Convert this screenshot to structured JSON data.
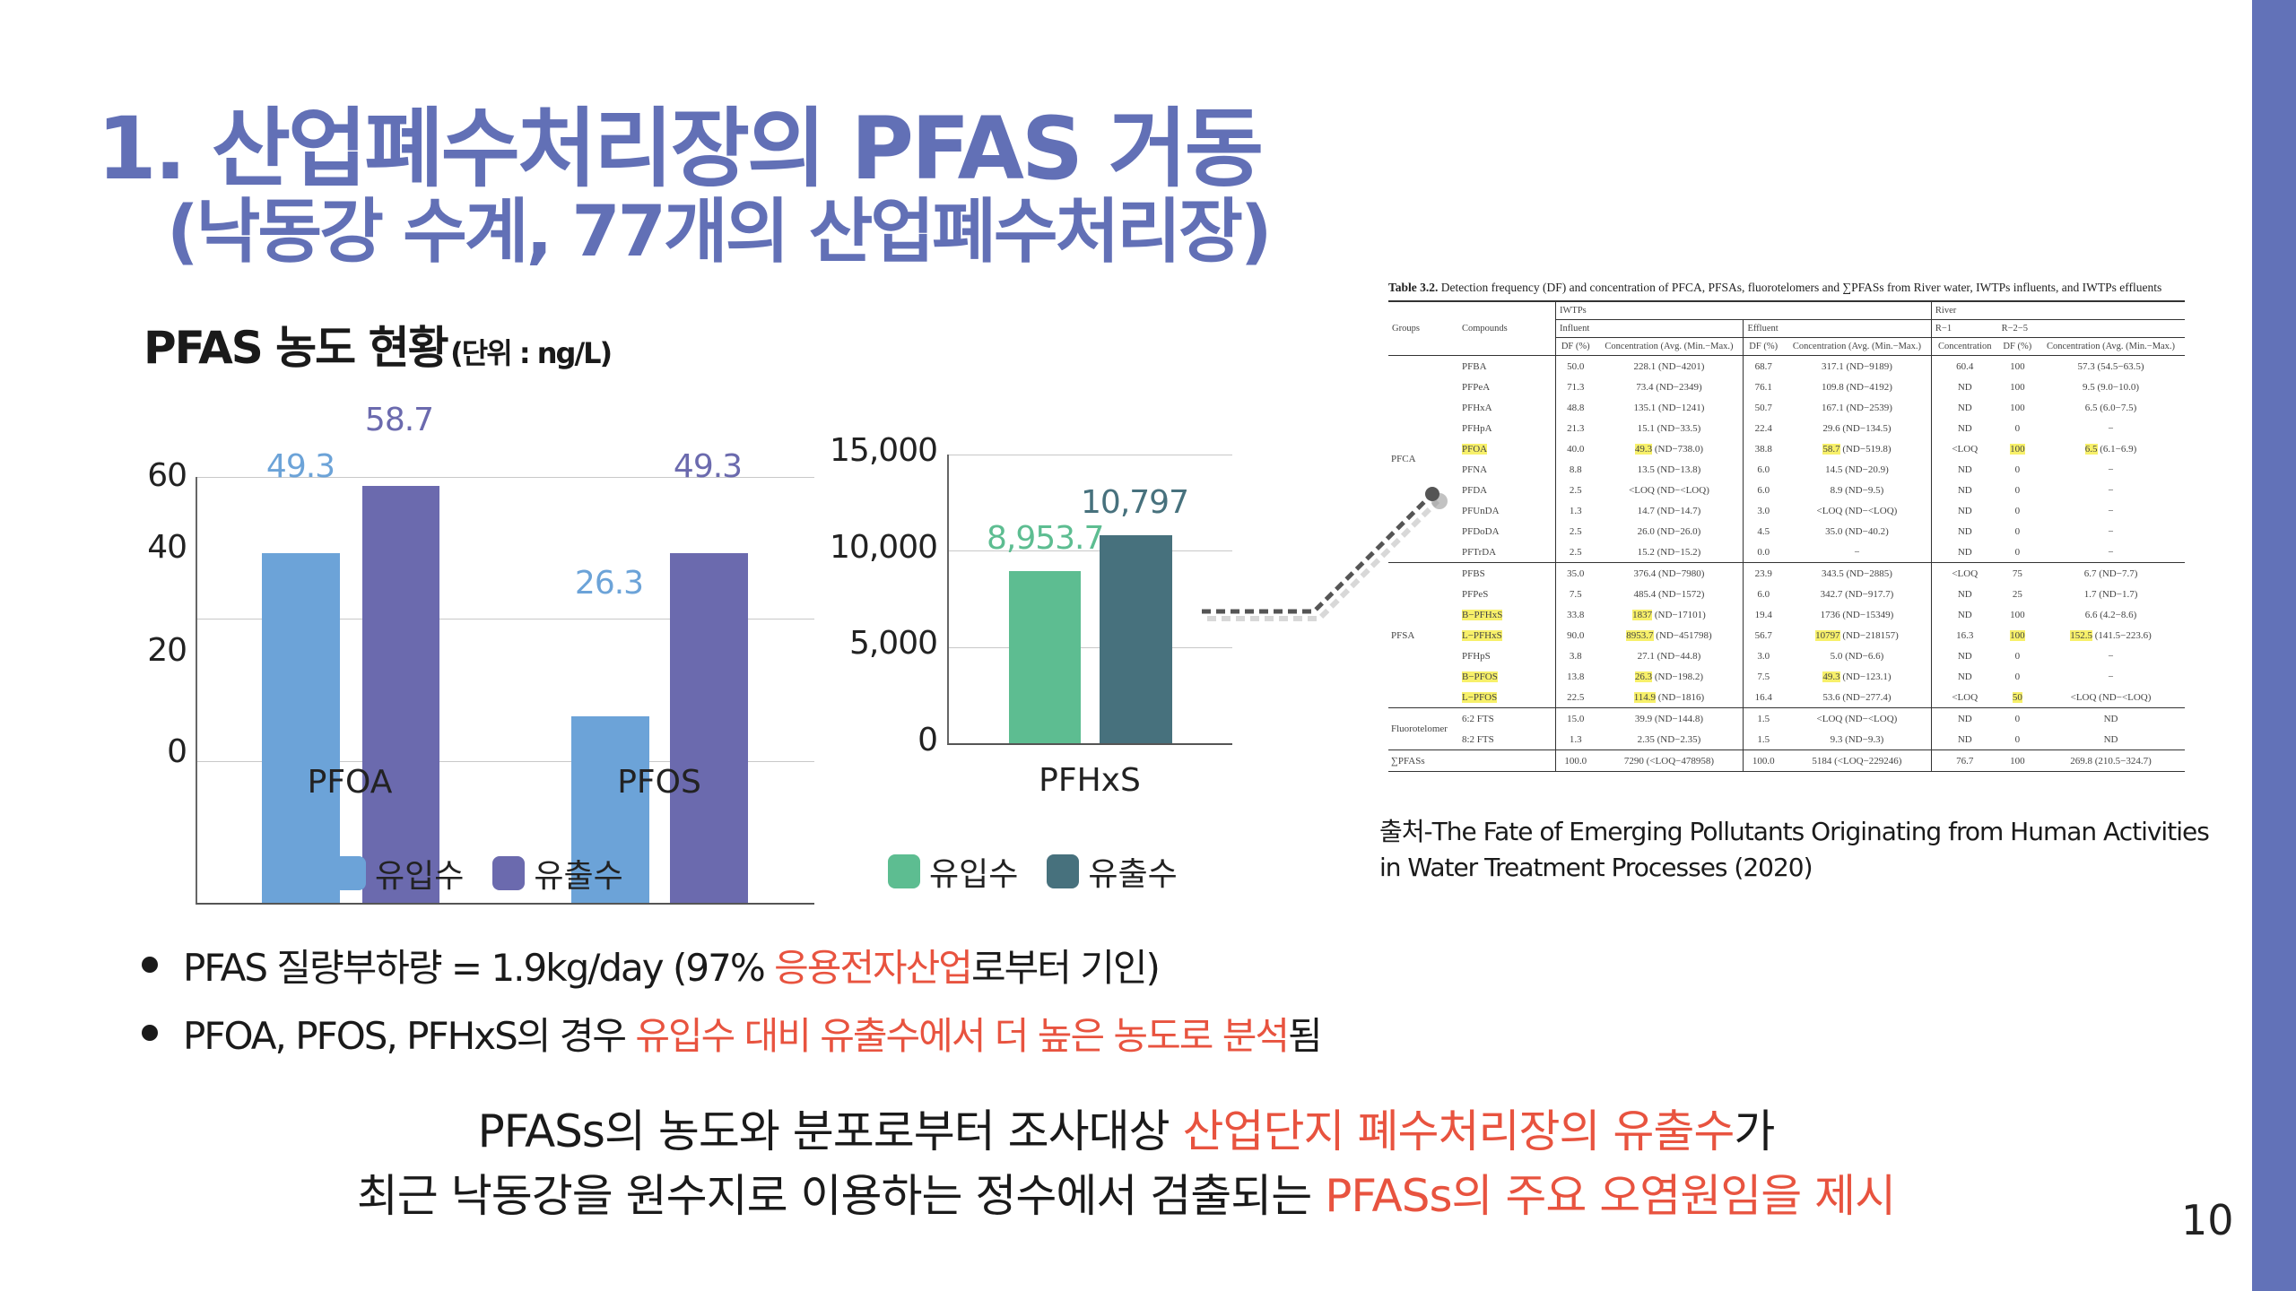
{
  "slide": {
    "title_line1": "1. 산업폐수처리장의 PFAS 거동",
    "title_line2": "(낙동강 수계, 77개의 산업폐수처리장)",
    "subtitle": "PFAS 농도 현황",
    "subtitle_unit": "(단위 : ng/L)",
    "page_number": "10",
    "accent_color": "#6272B8",
    "highlight_color": "#E8533F"
  },
  "legend_left": {
    "influent": "유입수",
    "effluent": "유출수"
  },
  "legend_right": {
    "influent": "유입수",
    "effluent": "유출수"
  },
  "chart_data": [
    {
      "type": "bar",
      "title": "PFAS 농도 현황 (단위 : ng/L)",
      "categories": [
        "PFOA",
        "PFOS"
      ],
      "series": [
        {
          "name": "유입수",
          "values": [
            49.3,
            26.3
          ],
          "labels": [
            "49.3",
            "26.3"
          ],
          "color": "#6CA3D8"
        },
        {
          "name": "유출수",
          "values": [
            58.7,
            49.3
          ],
          "labels": [
            "58.7",
            "49.3"
          ],
          "color": "#6B6AAE"
        }
      ],
      "yticks": [
        "60",
        "40",
        "20",
        "0"
      ],
      "ylim": [
        0,
        60
      ],
      "grid": true,
      "legend_position": "bottom"
    },
    {
      "type": "bar",
      "categories": [
        "PFHxS"
      ],
      "series": [
        {
          "name": "유입수",
          "values": [
            8953.7
          ],
          "labels": [
            "8,953.7"
          ],
          "color": "#5DBD91"
        },
        {
          "name": "유출수",
          "values": [
            10797
          ],
          "labels": [
            "10,797"
          ],
          "color": "#47717D"
        }
      ],
      "yticks": [
        "15,000",
        "10,000",
        "5,000",
        "0"
      ],
      "ylim": [
        0,
        15000
      ],
      "grid": true,
      "legend_position": "bottom"
    }
  ],
  "bullets": [
    {
      "pre": "PFAS 질량부하량 = 1.9kg/day (97% ",
      "red": "응용전자산업",
      "post": "로부터 기인)"
    },
    {
      "pre": "PFOA, PFOS, PFHxS의 경우 ",
      "red": "유입수 대비 유출수에서 더 높은 농도로 분석",
      "post": "됨"
    }
  ],
  "conclusion": [
    {
      "pre": "PFASs의 농도와 분포로부터 조사대상 ",
      "red": "산업단지 폐수처리장의 유출수",
      "post": "가"
    },
    {
      "pre": "최근 낙동강을 원수지로 이용하는 정수에서 검출되는 ",
      "red": "PFASs의 주요 오염원임을 제시",
      "post": ""
    }
  ],
  "source": {
    "line1": "출처-The Fate of Emerging Pollutants Originating from Human Activities",
    "line2": "in Water Treatment Processes (2020)"
  },
  "table": {
    "caption_bold": "Table 3.2.",
    "caption": " Detection frequency (DF) and concentration of PFCA, PFSAs, fluorotelomers and ∑PFASs from River water, IWTPs influents, and IWTPs effluents",
    "headers": {
      "groups": "Groups",
      "compounds": "Compounds",
      "iwtps": "IWTPs",
      "river": "River",
      "influent": "Influent",
      "effluent": "Effluent",
      "r1": "R−1",
      "r25": "R−2−5",
      "df": "DF (%)",
      "conc": "Concentration (Avg. (Min.−Max.)",
      "conc_plain": "Concentration"
    },
    "groups": [
      {
        "name": "PFCA",
        "rows": [
          [
            "PFBA",
            "50.0",
            "228.1 (ND−4201)",
            "68.7",
            "317.1 (ND−9189)",
            "60.4",
            "100",
            "57.3 (54.5−63.5)"
          ],
          [
            "PFPeA",
            "71.3",
            "73.4 (ND−2349)",
            "76.1",
            "109.8 (ND−4192)",
            "ND",
            "100",
            "9.5 (9.0−10.0)"
          ],
          [
            "PFHxA",
            "48.8",
            "135.1 (ND−1241)",
            "50.7",
            "167.1 (ND−2539)",
            "ND",
            "100",
            "6.5 (6.0−7.5)"
          ],
          [
            "PFHpA",
            "21.3",
            "15.1 (ND−33.5)",
            "22.4",
            "29.6 (ND−134.5)",
            "ND",
            "0",
            "−"
          ],
          [
            "PFOA",
            "40.0",
            "49.3 (ND−738.0)",
            "38.8",
            "58.7 (ND−519.8)",
            "<LOQ",
            "100",
            "6.5 (6.1−6.9)"
          ],
          [
            "PFNA",
            "8.8",
            "13.5 (ND−13.8)",
            "6.0",
            "14.5 (ND−20.9)",
            "ND",
            "0",
            "−"
          ],
          [
            "PFDA",
            "2.5",
            "<LOQ (ND−<LOQ)",
            "6.0",
            "8.9 (ND−9.5)",
            "ND",
            "0",
            "−"
          ],
          [
            "PFUnDA",
            "1.3",
            "14.7 (ND−14.7)",
            "3.0",
            "<LOQ (ND−<LOQ)",
            "ND",
            "0",
            "−"
          ],
          [
            "PFDoDA",
            "2.5",
            "26.0 (ND−26.0)",
            "4.5",
            "35.0 (ND−40.2)",
            "ND",
            "0",
            "−"
          ],
          [
            "PFTrDA",
            "2.5",
            "15.2 (ND−15.2)",
            "0.0",
            "−",
            "ND",
            "0",
            "−"
          ]
        ]
      },
      {
        "name": "PFSA",
        "rows": [
          [
            "PFBS",
            "35.0",
            "376.4 (ND−7980)",
            "23.9",
            "343.5 (ND−2885)",
            "<LOQ",
            "75",
            "6.7 (ND−7.7)"
          ],
          [
            "PFPeS",
            "7.5",
            "485.4 (ND−1572)",
            "6.0",
            "342.7 (ND−917.7)",
            "ND",
            "25",
            "1.7 (ND−1.7)"
          ],
          [
            "B−PFHxS",
            "33.8",
            "1837 (ND−17101)",
            "19.4",
            "1736 (ND−15349)",
            "ND",
            "100",
            "6.6 (4.2−8.6)"
          ],
          [
            "L−PFHxS",
            "90.0",
            "8953.7 (ND−451798)",
            "56.7",
            "10797 (ND−218157)",
            "16.3",
            "100",
            "152.5 (141.5−223.6)"
          ],
          [
            "PFHpS",
            "3.8",
            "27.1 (ND−44.8)",
            "3.0",
            "5.0 (ND−6.6)",
            "ND",
            "0",
            "−"
          ],
          [
            "B−PFOS",
            "13.8",
            "26.3 (ND−198.2)",
            "7.5",
            "49.3 (ND−123.1)",
            "ND",
            "0",
            "−"
          ],
          [
            "L−PFOS",
            "22.5",
            "114.9 (ND−1816)",
            "16.4",
            "53.6 (ND−277.4)",
            "<LOQ",
            "50",
            "<LOQ (ND−<LOQ)"
          ]
        ]
      },
      {
        "name": "Fluorotelomer",
        "rows": [
          [
            "6:2 FTS",
            "15.0",
            "39.9 (ND−144.8)",
            "1.5",
            "<LOQ (ND−<LOQ)",
            "ND",
            "0",
            "ND"
          ],
          [
            "8:2 FTS",
            "1.3",
            "2.35 (ND−2.35)",
            "1.5",
            "9.3 (ND−9.3)",
            "ND",
            "0",
            "ND"
          ]
        ]
      }
    ],
    "total": [
      "∑PFASs",
      "",
      "100.0",
      "7290 (<LOQ−478958)",
      "100.0",
      "5184 (<LOQ−229246)",
      "76.7",
      "100",
      "269.8 (210.5−324.7)"
    ]
  }
}
